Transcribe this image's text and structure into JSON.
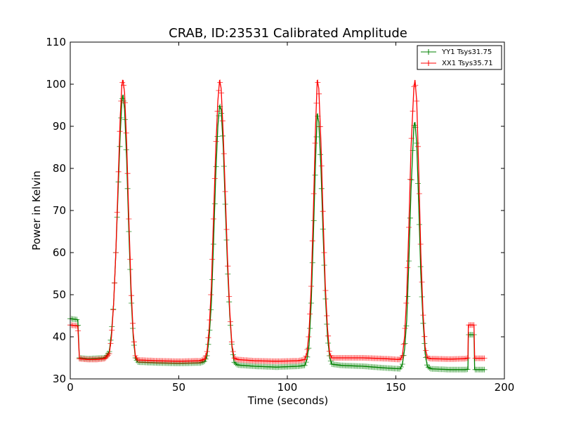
{
  "chart_data": {
    "type": "line",
    "title": "CRAB, ID:23531 Calibrated Amplitude",
    "xlabel": "Time (seconds)",
    "ylabel": "Power in Kelvin",
    "xlim": [
      0,
      200
    ],
    "ylim": [
      30,
      110
    ],
    "xticks": [
      0,
      50,
      100,
      150,
      200
    ],
    "yticks": [
      30,
      40,
      50,
      60,
      70,
      80,
      90,
      100,
      110
    ],
    "grid": false,
    "legend_position": "top-right",
    "series": [
      {
        "name": "YY1 Tsys31.75",
        "color": "#008000",
        "points": [
          [
            0,
            44.3
          ],
          [
            3,
            44.1
          ],
          [
            3.5,
            44.0
          ],
          [
            4.2,
            35.0
          ],
          [
            8,
            34.8
          ],
          [
            12,
            34.9
          ],
          [
            16,
            35.0
          ],
          [
            18,
            36.5
          ],
          [
            19,
            41.0
          ],
          [
            20,
            48.0
          ],
          [
            21,
            60.0
          ],
          [
            22,
            74.0
          ],
          [
            23,
            88.0
          ],
          [
            23.8,
            96.0
          ],
          [
            24.3,
            97.5
          ],
          [
            25,
            94.0
          ],
          [
            26,
            82.0
          ],
          [
            27,
            65.0
          ],
          [
            28,
            50.0
          ],
          [
            29,
            40.0
          ],
          [
            30,
            35.0
          ],
          [
            31,
            34.0
          ],
          [
            40,
            33.8
          ],
          [
            50,
            33.7
          ],
          [
            60,
            33.8
          ],
          [
            62,
            34.2
          ],
          [
            63,
            35.5
          ],
          [
            64,
            40.0
          ],
          [
            65,
            48.0
          ],
          [
            66,
            62.0
          ],
          [
            67,
            78.0
          ],
          [
            68,
            90.0
          ],
          [
            68.8,
            95.0
          ],
          [
            69.5,
            94.0
          ],
          [
            70.5,
            85.0
          ],
          [
            71.5,
            70.0
          ],
          [
            72.5,
            56.0
          ],
          [
            73.5,
            45.0
          ],
          [
            74.5,
            37.5
          ],
          [
            75.5,
            34.0
          ],
          [
            77,
            33.3
          ],
          [
            85,
            33.0
          ],
          [
            95,
            32.8
          ],
          [
            105,
            33.0
          ],
          [
            108,
            33.2
          ],
          [
            109,
            34.5
          ],
          [
            110,
            38.0
          ],
          [
            111,
            48.0
          ],
          [
            112,
            64.0
          ],
          [
            113,
            82.0
          ],
          [
            113.8,
            93.0
          ],
          [
            114.5,
            91.0
          ],
          [
            115.5,
            80.0
          ],
          [
            116.5,
            64.0
          ],
          [
            117.5,
            50.0
          ],
          [
            118.5,
            40.0
          ],
          [
            119.5,
            35.0
          ],
          [
            120.5,
            33.5
          ],
          [
            125,
            33.2
          ],
          [
            135,
            33.0
          ],
          [
            145,
            32.6
          ],
          [
            152,
            32.4
          ],
          [
            153,
            33.5
          ],
          [
            154,
            37.0
          ],
          [
            155,
            44.0
          ],
          [
            156,
            58.0
          ],
          [
            157,
            75.0
          ],
          [
            158.3,
            90.0
          ],
          [
            158.8,
            91.0
          ],
          [
            159.6,
            86.0
          ],
          [
            160.6,
            70.0
          ],
          [
            161.5,
            55.0
          ],
          [
            162.5,
            44.0
          ],
          [
            163.5,
            36.0
          ],
          [
            164.5,
            33.0
          ],
          [
            166,
            32.4
          ],
          [
            175,
            32.2
          ],
          [
            182,
            32.2
          ],
          [
            183.2,
            32.3
          ],
          [
            183.4,
            40.5
          ],
          [
            186.0,
            40.5
          ],
          [
            186.3,
            32.2
          ],
          [
            191,
            32.2
          ]
        ]
      },
      {
        "name": "XX1 Tsys35.71",
        "color": "#ff0000",
        "points": [
          [
            0,
            42.8
          ],
          [
            3,
            42.6
          ],
          [
            3.5,
            42.5
          ],
          [
            4.2,
            34.8
          ],
          [
            8,
            34.6
          ],
          [
            12,
            34.6
          ],
          [
            16,
            34.8
          ],
          [
            18,
            36.0
          ],
          [
            19,
            40.0
          ],
          [
            20,
            48.0
          ],
          [
            21,
            60.0
          ],
          [
            22,
            76.0
          ],
          [
            23,
            92.0
          ],
          [
            23.8,
            100.0
          ],
          [
            24.3,
            101.0
          ],
          [
            25,
            98.0
          ],
          [
            26,
            86.0
          ],
          [
            27,
            68.0
          ],
          [
            28,
            52.0
          ],
          [
            29,
            41.0
          ],
          [
            30,
            35.5
          ],
          [
            31,
            34.5
          ],
          [
            40,
            34.3
          ],
          [
            50,
            34.2
          ],
          [
            60,
            34.3
          ],
          [
            62,
            34.8
          ],
          [
            63,
            36.5
          ],
          [
            64,
            42.0
          ],
          [
            65,
            52.0
          ],
          [
            66,
            68.0
          ],
          [
            67,
            84.0
          ],
          [
            68,
            96.0
          ],
          [
            68.8,
            101.0
          ],
          [
            69.5,
            99.0
          ],
          [
            70.5,
            88.0
          ],
          [
            71.5,
            73.0
          ],
          [
            72.5,
            58.0
          ],
          [
            73.5,
            46.0
          ],
          [
            74.5,
            38.0
          ],
          [
            75.5,
            35.0
          ],
          [
            77,
            34.6
          ],
          [
            85,
            34.3
          ],
          [
            95,
            34.2
          ],
          [
            105,
            34.3
          ],
          [
            108,
            34.6
          ],
          [
            109,
            36.0
          ],
          [
            110,
            41.0
          ],
          [
            111,
            52.0
          ],
          [
            112,
            70.0
          ],
          [
            113,
            90.0
          ],
          [
            113.8,
            101.0
          ],
          [
            114.5,
            99.0
          ],
          [
            115.5,
            86.0
          ],
          [
            116.5,
            68.0
          ],
          [
            117.5,
            52.0
          ],
          [
            118.5,
            42.0
          ],
          [
            119.5,
            36.0
          ],
          [
            120.5,
            35.0
          ],
          [
            125,
            35.0
          ],
          [
            135,
            35.0
          ],
          [
            145,
            34.8
          ],
          [
            152,
            34.6
          ],
          [
            153,
            35.5
          ],
          [
            154,
            40.0
          ],
          [
            155,
            50.0
          ],
          [
            156,
            66.0
          ],
          [
            157,
            85.0
          ],
          [
            158.3,
            99.0
          ],
          [
            158.8,
            101.0
          ],
          [
            159.6,
            96.0
          ],
          [
            160.6,
            78.0
          ],
          [
            161.5,
            60.0
          ],
          [
            162.5,
            46.0
          ],
          [
            163.5,
            37.5
          ],
          [
            164.5,
            35.0
          ],
          [
            166,
            34.8
          ],
          [
            175,
            34.7
          ],
          [
            182,
            34.8
          ],
          [
            183.2,
            35.0
          ],
          [
            183.4,
            42.8
          ],
          [
            186.0,
            42.8
          ],
          [
            186.3,
            34.9
          ],
          [
            191,
            34.9
          ]
        ]
      }
    ]
  }
}
